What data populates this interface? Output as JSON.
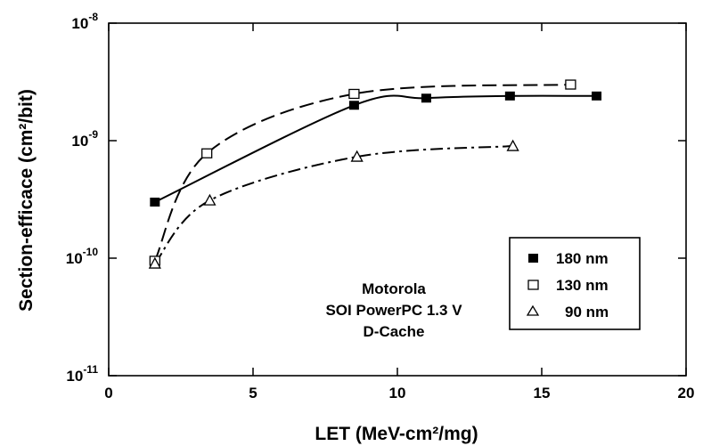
{
  "chart_data": {
    "type": "scatter",
    "xlabel": "LET (MeV-cm²/mg)",
    "ylabel": "Section-efficace (cm²/bit)",
    "xlim": [
      0,
      20
    ],
    "ylim": [
      1e-11,
      1e-08
    ],
    "yscale": "log",
    "x_ticks": [
      {
        "value": 0,
        "label": "0"
      },
      {
        "value": 5,
        "label": "5"
      },
      {
        "value": 10,
        "label": "10"
      },
      {
        "value": 15,
        "label": "15"
      },
      {
        "value": 20,
        "label": "20"
      }
    ],
    "y_ticks": [
      {
        "value": 1e-08,
        "base": "10",
        "exp": "-8"
      },
      {
        "value": 1e-09,
        "base": "10",
        "exp": "-9"
      },
      {
        "value": 1e-10,
        "base": "10",
        "exp": "-10"
      },
      {
        "value": 1e-11,
        "base": "10",
        "exp": "-11"
      }
    ],
    "grid": false,
    "legend_position": "bottom-right",
    "annotation": [
      "Motorola",
      "SOI PowerPC 1.3 V",
      "D-Cache"
    ],
    "series": [
      {
        "name": "180 nm",
        "marker": "filled-square",
        "line": "solid",
        "x": [
          1.6,
          8.5,
          11.0,
          13.9,
          16.9
        ],
        "y": [
          3e-10,
          2e-09,
          2.3e-09,
          2.4e-09,
          2.4e-09
        ]
      },
      {
        "name": "130 nm",
        "marker": "open-square",
        "line": "dashed",
        "x": [
          1.6,
          3.4,
          8.5,
          16.0
        ],
        "y": [
          9.5e-11,
          7.8e-10,
          2.5e-09,
          3e-09
        ]
      },
      {
        "name": "90 nm",
        "marker": "open-triangle",
        "line": "dash-dot",
        "x": [
          1.6,
          3.5,
          8.6,
          14.0
        ],
        "y": [
          9e-11,
          3.1e-10,
          7.3e-10,
          9e-10
        ]
      }
    ]
  }
}
